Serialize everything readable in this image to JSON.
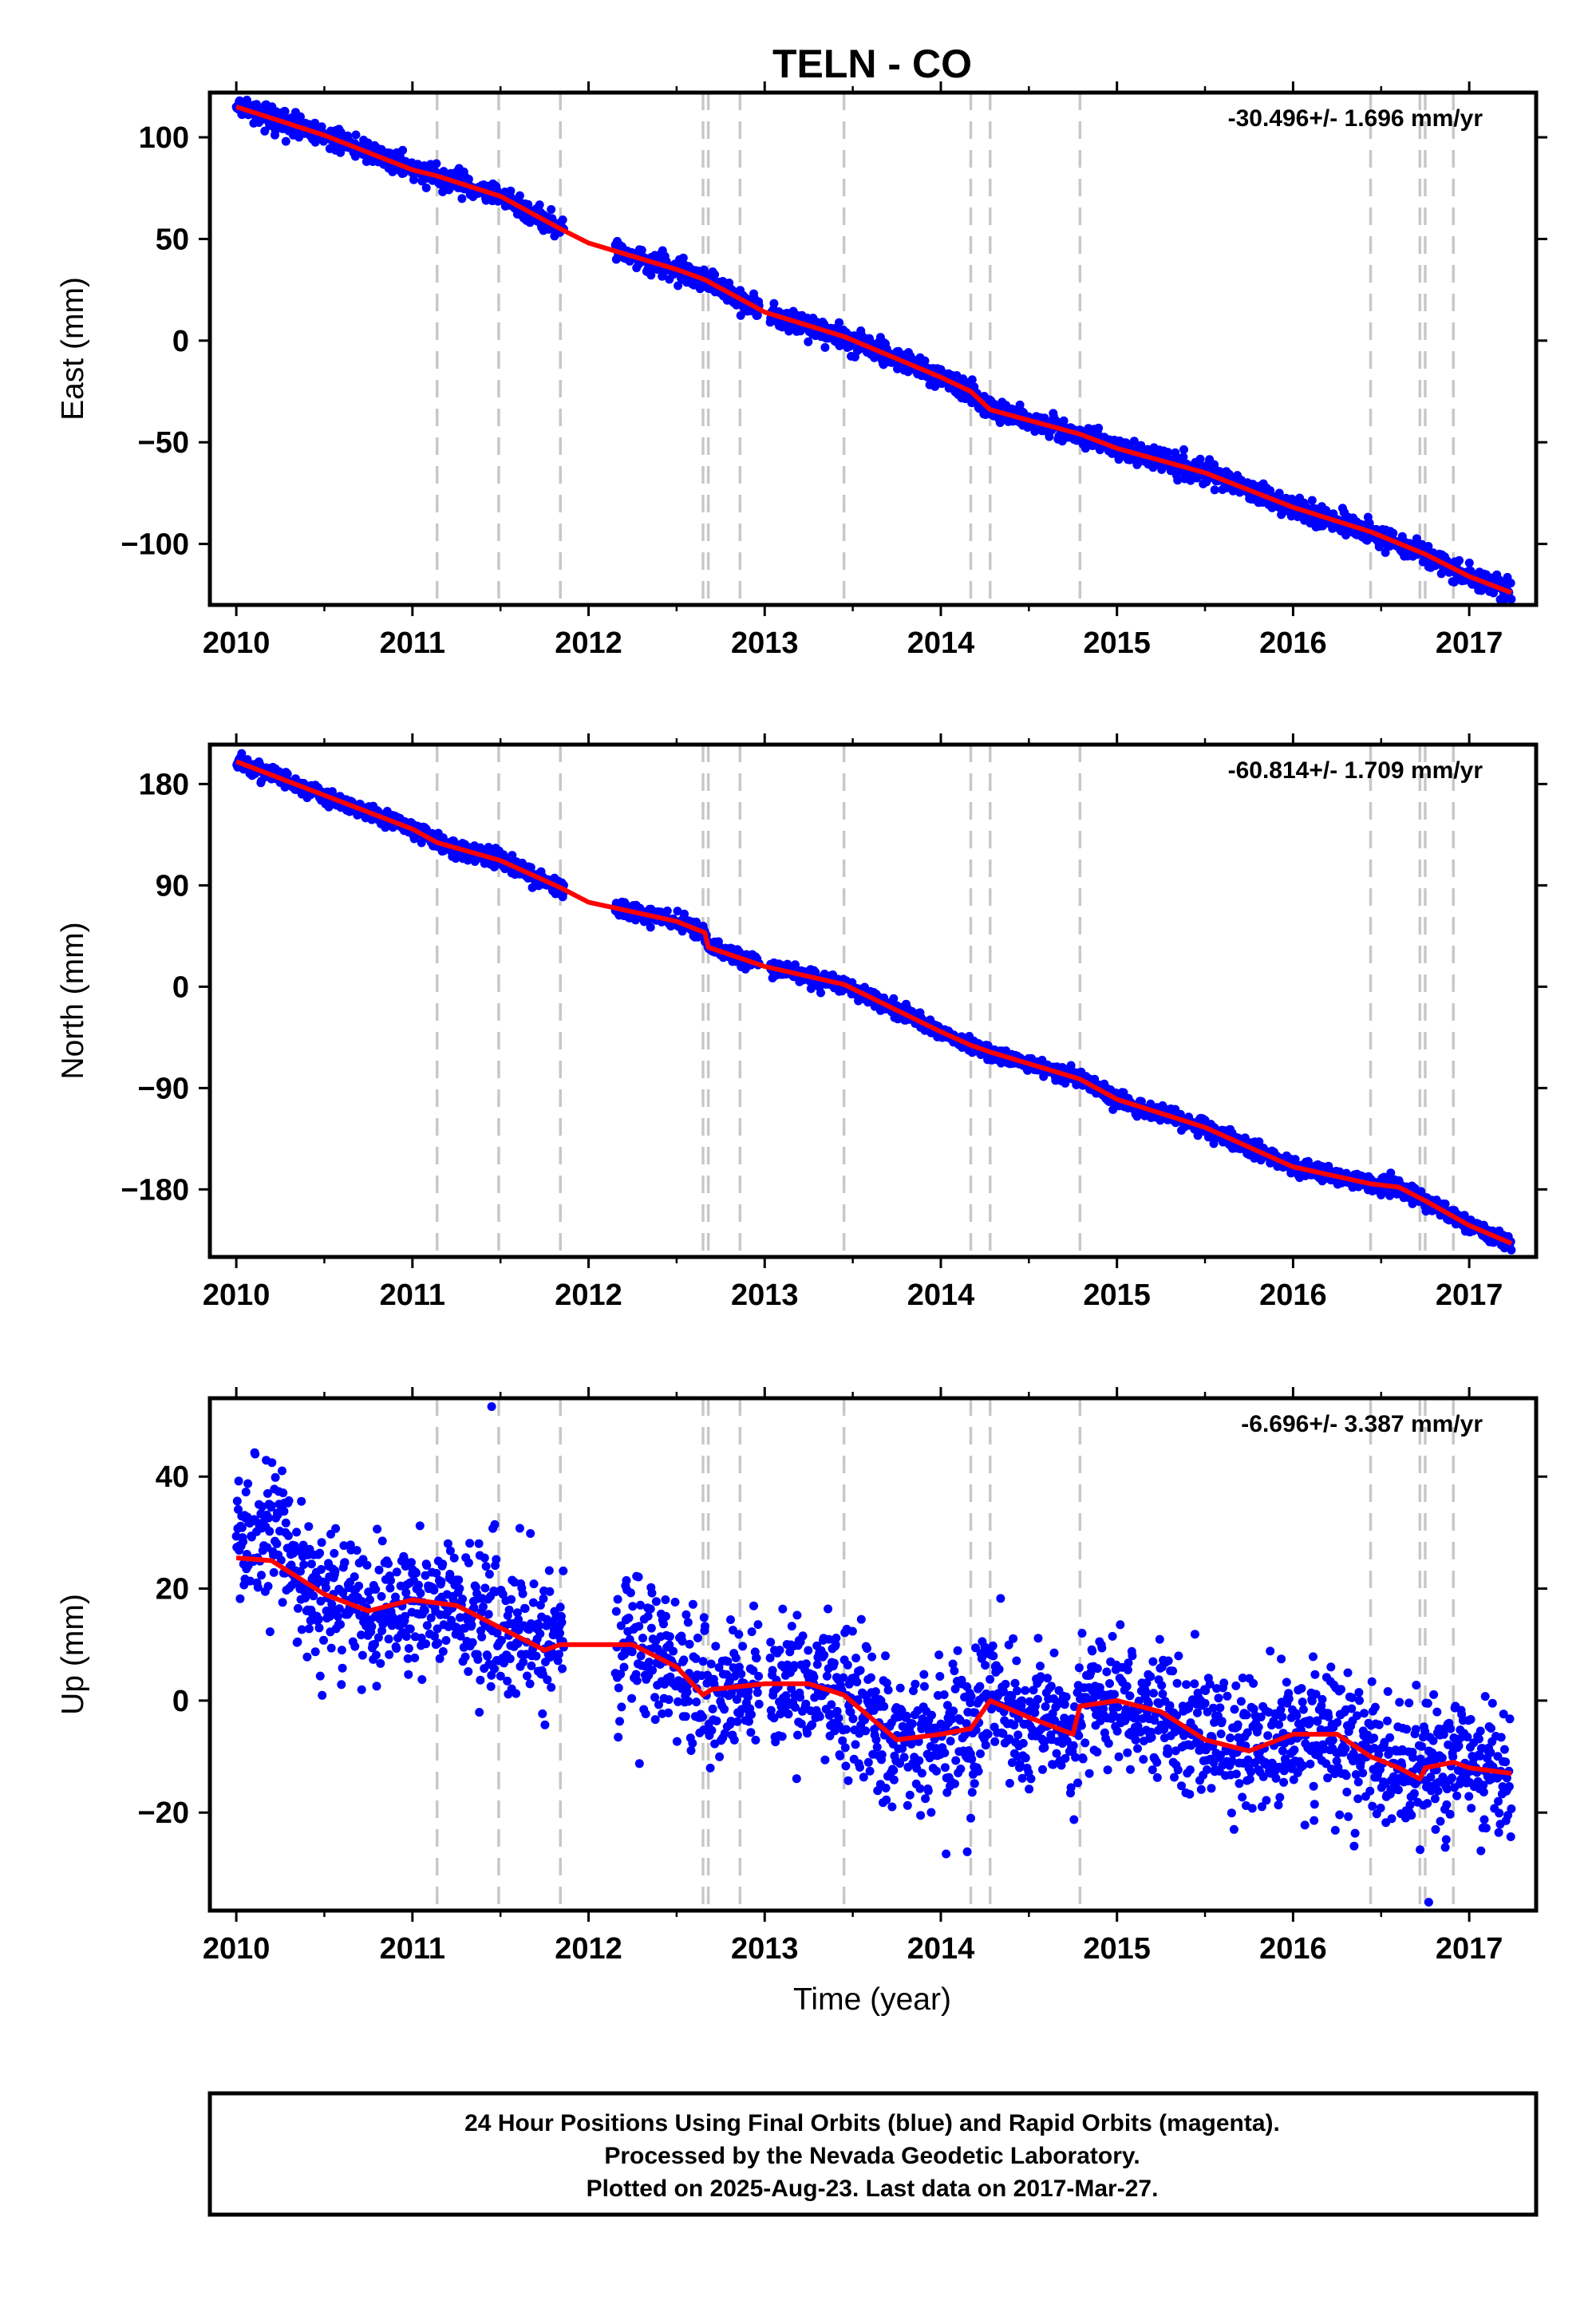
{
  "figure": {
    "title": "TELN - CO",
    "footer_lines": [
      "24 Hour Positions Using Final Orbits (blue) and Rapid Orbits (magenta).",
      "Processed by the Nevada Geodetic Laboratory.",
      "Plotted on 2025-Aug-23. Last data on 2017-Mar-27."
    ],
    "xlabel": "Time (year)"
  },
  "colors": {
    "data_points": "#0000ff",
    "model_line": "#ff0000",
    "event_lines": "#c8c8c8",
    "frame": "#000000"
  },
  "events": [
    2011.14,
    2011.49,
    2011.84,
    2012.65,
    2012.68,
    2012.86,
    2013.45,
    2014.17,
    2014.28,
    2014.79,
    2016.44,
    2016.72,
    2016.75,
    2016.91
  ],
  "chart_data": [
    {
      "type": "scatter",
      "component": "East",
      "ylabel": "East (mm)",
      "rate_label": "-30.496+/- 1.696 mm/yr",
      "xlim": [
        2009.85,
        2017.38
      ],
      "ylim": [
        -130,
        122
      ],
      "xticks": [
        2010,
        2011,
        2012,
        2013,
        2014,
        2015,
        2016,
        2017
      ],
      "yticks": [
        100,
        50,
        0,
        -50,
        -100
      ],
      "ytick_labels": [
        "100",
        "50",
        "0",
        "−50",
        "−100"
      ],
      "x_range": [
        2010.0,
        2017.24
      ],
      "model": {
        "x": [
          2010.0,
          2010.5,
          2011.0,
          2011.14,
          2011.5,
          2011.84,
          2012.0,
          2012.5,
          2012.66,
          2013.0,
          2013.45,
          2014.0,
          2014.17,
          2014.28,
          2014.79,
          2015.0,
          2015.5,
          2016.0,
          2016.44,
          2016.75,
          2017.0,
          2017.24
        ],
        "y": [
          115,
          101,
          84,
          81,
          71,
          55,
          48,
          35,
          30,
          14,
          2,
          -18,
          -25,
          -34,
          -46,
          -53,
          -65,
          -82,
          -94,
          -105,
          -116,
          -124
        ]
      },
      "noise": 2.6,
      "outliers": []
    },
    {
      "type": "scatter",
      "component": "North",
      "ylabel": "North (mm)",
      "rate_label": "-60.814+/- 1.709 mm/yr",
      "xlim": [
        2009.85,
        2017.38
      ],
      "ylim": [
        -240,
        215
      ],
      "xticks": [
        2010,
        2011,
        2012,
        2013,
        2014,
        2015,
        2016,
        2017
      ],
      "yticks": [
        180,
        90,
        0,
        -90,
        -180
      ],
      "ytick_labels": [
        "180",
        "90",
        "0",
        "−90",
        "−180"
      ],
      "x_range": [
        2010.0,
        2017.24
      ],
      "model": {
        "x": [
          2010.0,
          2010.5,
          2011.0,
          2011.14,
          2011.5,
          2011.84,
          2012.0,
          2012.5,
          2012.66,
          2012.68,
          2013.0,
          2013.45,
          2014.0,
          2014.17,
          2014.28,
          2014.79,
          2015.0,
          2015.5,
          2016.0,
          2016.44,
          2016.6,
          2016.75,
          2017.0,
          2017.24
        ],
        "y": [
          200,
          170,
          140,
          128,
          112,
          88,
          75,
          58,
          48,
          35,
          18,
          2,
          -40,
          -52,
          -58,
          -82,
          -100,
          -125,
          -160,
          -175,
          -178,
          -190,
          -212,
          -228
        ]
      },
      "noise": 3.5,
      "outliers": []
    },
    {
      "type": "scatter",
      "component": "Up",
      "ylabel": "Up (mm)",
      "rate_label": "-6.696+/- 3.387 mm/yr",
      "xlim": [
        2009.85,
        2017.38
      ],
      "ylim": [
        -37.5,
        54
      ],
      "xticks": [
        2010,
        2011,
        2012,
        2013,
        2014,
        2015,
        2016,
        2017
      ],
      "yticks": [
        40,
        20,
        0,
        -20
      ],
      "ytick_labels": [
        "40",
        "20",
        "0",
        "−20"
      ],
      "x_range": [
        2010.0,
        2017.24
      ],
      "model": {
        "x": [
          2010.0,
          2010.2,
          2010.5,
          2010.75,
          2011.0,
          2011.25,
          2011.5,
          2011.75,
          2011.84,
          2012.0,
          2012.25,
          2012.5,
          2012.65,
          2012.7,
          2013.0,
          2013.25,
          2013.45,
          2013.75,
          2014.0,
          2014.17,
          2014.28,
          2014.5,
          2014.75,
          2014.79,
          2015.0,
          2015.25,
          2015.5,
          2015.75,
          2016.0,
          2016.25,
          2016.44,
          2016.6,
          2016.72,
          2016.75,
          2016.91,
          2017.0,
          2017.24
        ],
        "y": [
          25.5,
          25,
          19,
          16,
          18,
          17,
          13,
          9,
          10,
          10,
          10,
          6,
          1,
          2,
          3,
          3,
          1,
          -7,
          -6,
          -5,
          0,
          -3,
          -6,
          -1,
          0,
          -2,
          -7,
          -9,
          -6,
          -6,
          -10,
          -12,
          -14,
          -12,
          -11,
          -12,
          -13
        ]
      },
      "noise": 6.0,
      "outliers": [
        [
          2011.45,
          52.5
        ],
        [
          2016.77,
          -36
        ],
        [
          2014.15,
          -27
        ],
        [
          2014.17,
          -21
        ]
      ]
    }
  ]
}
